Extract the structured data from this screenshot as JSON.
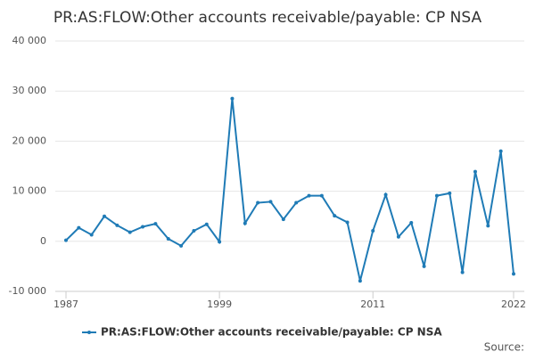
{
  "chart_data": {
    "type": "line",
    "title": "PR:AS:FLOW:Other accounts receivable/payable: CP NSA",
    "x": [
      1987,
      1988,
      1989,
      1990,
      1991,
      1992,
      1993,
      1994,
      1995,
      1996,
      1997,
      1998,
      1999,
      2000,
      2001,
      2002,
      2003,
      2004,
      2005,
      2006,
      2007,
      2008,
      2009,
      2010,
      2011,
      2012,
      2013,
      2014,
      2015,
      2016,
      2017,
      2018,
      2019,
      2020,
      2021,
      2022
    ],
    "series": [
      {
        "name": "PR:AS:FLOW:Other accounts receivable/payable: CP NSA",
        "color": "#1f7bb6",
        "values": [
          200,
          2700,
          1300,
          5000,
          3200,
          1800,
          2900,
          3500,
          500,
          -900,
          2100,
          3400,
          -100,
          28500,
          3600,
          7700,
          7900,
          4400,
          7700,
          9100,
          9100,
          5100,
          3800,
          -7900,
          2100,
          9300,
          900,
          3700,
          -5000,
          9100,
          9600,
          -6200,
          13900,
          3100,
          18000,
          -6500
        ]
      }
    ],
    "xlim": [
      1987,
      2022
    ],
    "xticks": [
      1987,
      1999,
      2011,
      2022
    ],
    "ylim": [
      -10000,
      40000
    ],
    "yticks": [
      {
        "value": -10000,
        "label": "-10 000"
      },
      0,
      {
        "value": 10000,
        "label": "10 000"
      },
      {
        "value": 20000,
        "label": "20 000"
      },
      {
        "value": 30000,
        "label": "30 000"
      },
      {
        "value": 40000,
        "label": "40 000"
      }
    ],
    "grid": true,
    "legend": "bottom",
    "source": "Source:"
  }
}
